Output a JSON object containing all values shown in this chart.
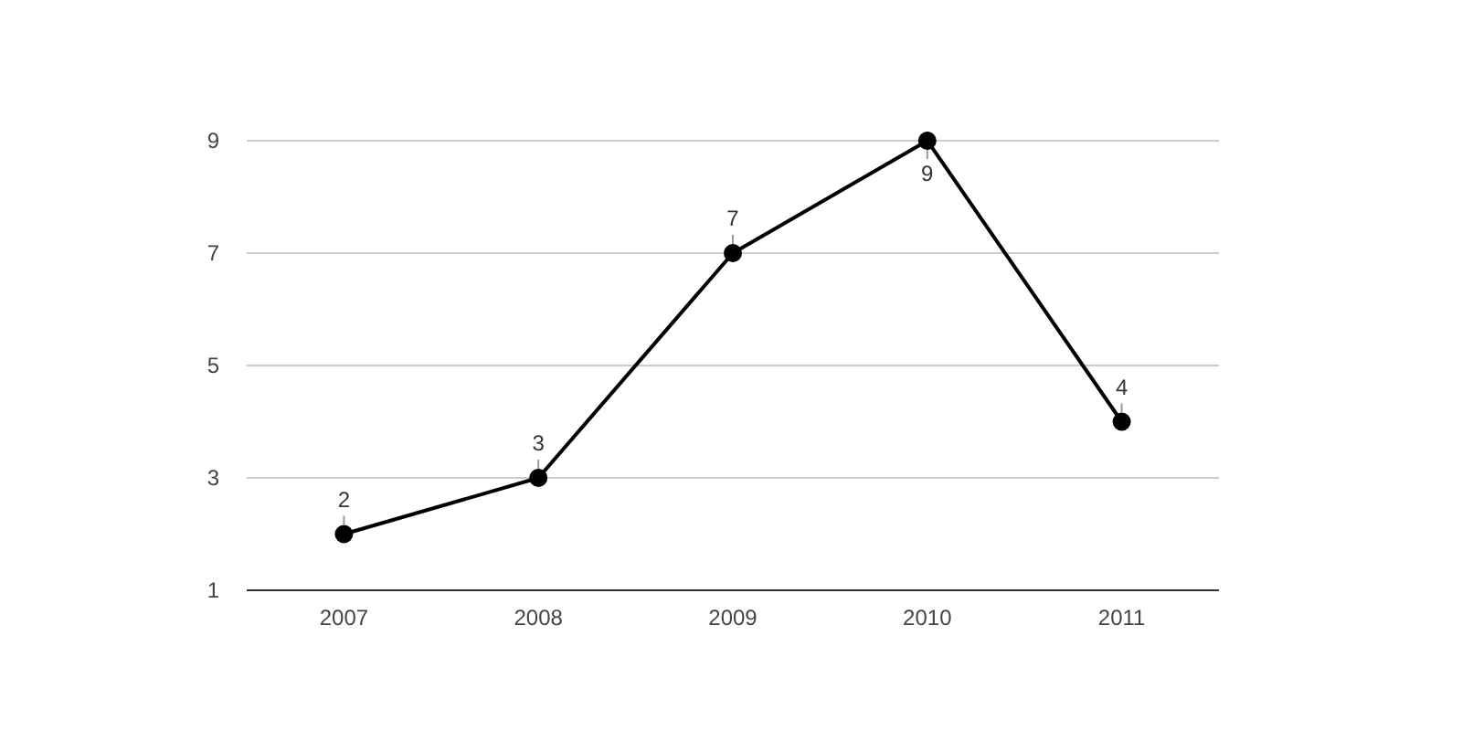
{
  "chart_data": {
    "type": "line",
    "categories": [
      "2007",
      "2008",
      "2009",
      "2010",
      "2011"
    ],
    "series": [
      {
        "color": "#000000",
        "values": [
          2,
          3,
          7,
          9,
          4
        ]
      }
    ],
    "ylim": [
      1,
      9
    ],
    "yticks": [
      1,
      3,
      5,
      7,
      9
    ],
    "grid": "y",
    "marker": "circle",
    "line_style": "solid",
    "data_labels": true
  }
}
